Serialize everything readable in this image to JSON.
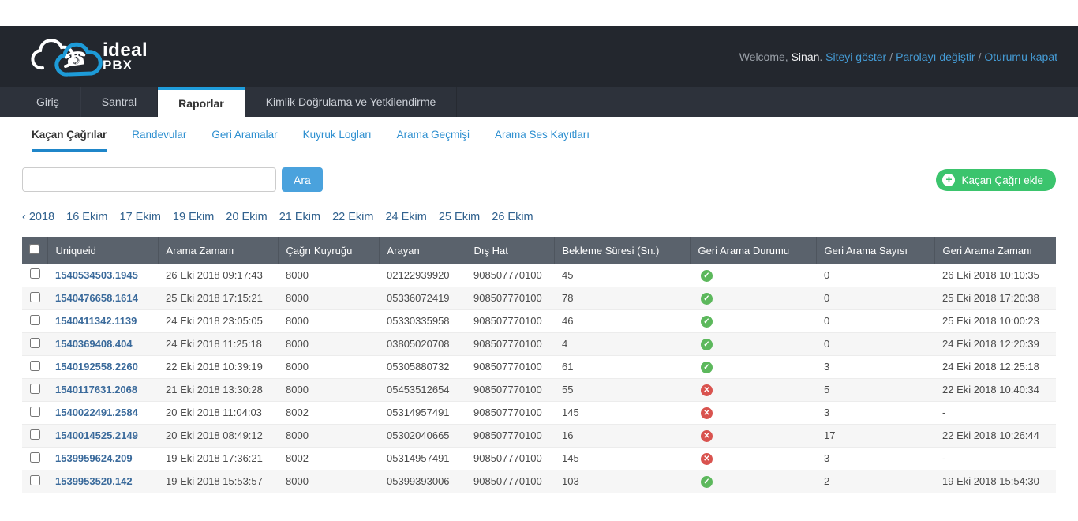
{
  "header": {
    "logo": {
      "brand": "ideal",
      "sub": "PBX",
      "cloud_icon": "cloud-phone-icon",
      "accent_blue": "#1d9bd8"
    },
    "user_tools": {
      "welcome": "Welcome,",
      "username": "Sinan",
      "links": [
        "Siteyi göster",
        "Parolayı değiştir",
        "Oturumu kapat"
      ]
    }
  },
  "nav": {
    "tabs": [
      {
        "label": "Giriş",
        "active": false
      },
      {
        "label": "Santral",
        "active": false
      },
      {
        "label": "Raporlar",
        "active": true
      },
      {
        "label": "Kimlik Doğrulama ve Yetkilendirme",
        "active": false
      }
    ]
  },
  "subnav": {
    "tabs": [
      {
        "label": "Kaçan Çağrılar",
        "active": true
      },
      {
        "label": "Randevular",
        "active": false
      },
      {
        "label": "Geri Aramalar",
        "active": false
      },
      {
        "label": "Kuyruk Logları",
        "active": false
      },
      {
        "label": "Arama Geçmişi",
        "active": false
      },
      {
        "label": "Arama Ses Kayıtları",
        "active": false
      }
    ]
  },
  "toolbar": {
    "search_value": "",
    "search_button": "Ara",
    "add_button": "Kaçan Çağrı ekle",
    "add_button_color": "#3bc46d"
  },
  "date_hierarchy": {
    "items": [
      "‹ 2018",
      "16 Ekim",
      "17 Ekim",
      "19 Ekim",
      "20 Ekim",
      "21 Ekim",
      "22 Ekim",
      "24 Ekim",
      "25 Ekim",
      "26 Ekim"
    ]
  },
  "icons": {
    "ok": {
      "name": "check-circle-icon",
      "glyph": "✓",
      "color": "#5cb85c"
    },
    "fail": {
      "name": "x-circle-icon",
      "glyph": "✕",
      "color": "#d9534f"
    },
    "add": {
      "name": "plus-circle-icon",
      "glyph": "+"
    }
  },
  "table": {
    "columns": [
      "Uniqueid",
      "Arama Zamanı",
      "Çağrı Kuyruğu",
      "Arayan",
      "Dış Hat",
      "Bekleme Süresi (Sn.)",
      "Geri Arama Durumu",
      "Geri Arama Sayısı",
      "Geri Arama Zamanı"
    ],
    "rows": [
      {
        "uniqueid": "1540534503.1945",
        "call_time": "26 Eki 2018 09:17:43",
        "queue": "8000",
        "caller": "02122939920",
        "trunk": "908507770100",
        "wait_seconds": "45",
        "callback_status": "ok",
        "callback_count": "0",
        "callback_time": "26 Eki 2018 10:10:35"
      },
      {
        "uniqueid": "1540476658.1614",
        "call_time": "25 Eki 2018 17:15:21",
        "queue": "8000",
        "caller": "05336072419",
        "trunk": "908507770100",
        "wait_seconds": "78",
        "callback_status": "ok",
        "callback_count": "0",
        "callback_time": "25 Eki 2018 17:20:38"
      },
      {
        "uniqueid": "1540411342.1139",
        "call_time": "24 Eki 2018 23:05:05",
        "queue": "8000",
        "caller": "05330335958",
        "trunk": "908507770100",
        "wait_seconds": "46",
        "callback_status": "ok",
        "callback_count": "0",
        "callback_time": "25 Eki 2018 10:00:23"
      },
      {
        "uniqueid": "1540369408.404",
        "call_time": "24 Eki 2018 11:25:18",
        "queue": "8000",
        "caller": "03805020708",
        "trunk": "908507770100",
        "wait_seconds": "4",
        "callback_status": "ok",
        "callback_count": "0",
        "callback_time": "24 Eki 2018 12:20:39"
      },
      {
        "uniqueid": "1540192558.2260",
        "call_time": "22 Eki 2018 10:39:19",
        "queue": "8000",
        "caller": "05305880732",
        "trunk": "908507770100",
        "wait_seconds": "61",
        "callback_status": "ok",
        "callback_count": "3",
        "callback_time": "24 Eki 2018 12:25:18"
      },
      {
        "uniqueid": "1540117631.2068",
        "call_time": "21 Eki 2018 13:30:28",
        "queue": "8000",
        "caller": "05453512654",
        "trunk": "908507770100",
        "wait_seconds": "55",
        "callback_status": "fail",
        "callback_count": "5",
        "callback_time": "22 Eki 2018 10:40:34"
      },
      {
        "uniqueid": "1540022491.2584",
        "call_time": "20 Eki 2018 11:04:03",
        "queue": "8002",
        "caller": "05314957491",
        "trunk": "908507770100",
        "wait_seconds": "145",
        "callback_status": "fail",
        "callback_count": "3",
        "callback_time": "-"
      },
      {
        "uniqueid": "1540014525.2149",
        "call_time": "20 Eki 2018 08:49:12",
        "queue": "8000",
        "caller": "05302040665",
        "trunk": "908507770100",
        "wait_seconds": "16",
        "callback_status": "fail",
        "callback_count": "17",
        "callback_time": "22 Eki 2018 10:26:44"
      },
      {
        "uniqueid": "1539959624.209",
        "call_time": "19 Eki 2018 17:36:21",
        "queue": "8002",
        "caller": "05314957491",
        "trunk": "908507770100",
        "wait_seconds": "145",
        "callback_status": "fail",
        "callback_count": "3",
        "callback_time": "-"
      },
      {
        "uniqueid": "1539953520.142",
        "call_time": "19 Eki 2018 15:53:57",
        "queue": "8000",
        "caller": "05399393006",
        "trunk": "908507770100",
        "wait_seconds": "103",
        "callback_status": "ok",
        "callback_count": "2",
        "callback_time": "19 Eki 2018 15:54:30"
      }
    ]
  }
}
